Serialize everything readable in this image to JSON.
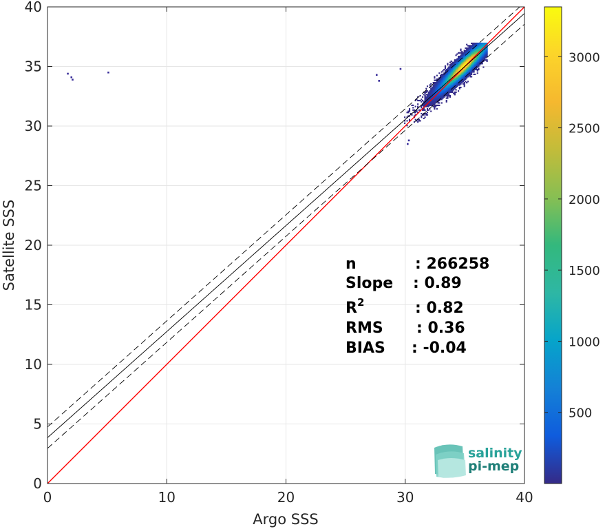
{
  "chart_data": {
    "type": "heatmap",
    "xlabel": "Argo SSS",
    "ylabel": "Satellite SSS",
    "xlim": [
      0,
      40
    ],
    "ylim": [
      0,
      40
    ],
    "xticks": [
      "0",
      "10",
      "20",
      "30",
      "40"
    ],
    "yticks": [
      "0",
      "5",
      "10",
      "15",
      "20",
      "25",
      "30",
      "35",
      "40"
    ],
    "grid": true,
    "colorbar": {
      "range": [
        0,
        3350
      ],
      "ticks": [
        "500",
        "1000",
        "1500",
        "2000",
        "2500",
        "3000"
      ],
      "tick_values": [
        500,
        1000,
        1500,
        2000,
        2500,
        3000
      ],
      "colormap": "parula"
    },
    "density_cluster": {
      "center": [
        34.9,
        35.0
      ],
      "x_range": [
        29.8,
        36.9
      ],
      "y_range": [
        29.5,
        37.1
      ],
      "peak_count": 3350
    },
    "outliers": [
      {
        "x": 1.7,
        "y": 34.4
      },
      {
        "x": 2.0,
        "y": 34.1
      },
      {
        "x": 2.1,
        "y": 33.9
      },
      {
        "x": 5.1,
        "y": 34.5
      },
      {
        "x": 27.6,
        "y": 34.3
      },
      {
        "x": 27.8,
        "y": 33.8
      },
      {
        "x": 29.6,
        "y": 34.8
      },
      {
        "x": 30.2,
        "y": 28.5
      },
      {
        "x": 30.3,
        "y": 28.8
      }
    ],
    "lines": [
      {
        "name": "identity",
        "slope": 1.0,
        "intercept": 0.0,
        "color": "#ff0000",
        "style": "solid"
      },
      {
        "name": "regression",
        "slope": 0.89,
        "intercept": 3.85,
        "color": "#000000",
        "style": "solid"
      },
      {
        "name": "regression-upper",
        "slope": 0.89,
        "intercept": 4.75,
        "color": "#000000",
        "style": "dashed"
      },
      {
        "name": "regression-lower",
        "slope": 0.89,
        "intercept": 2.95,
        "color": "#000000",
        "style": "dashed"
      }
    ]
  },
  "stats": {
    "n_label": "n",
    "n_value": ": 266258",
    "slope_label": "Slope",
    "slope_value": ": 0.89",
    "r2_label": "R",
    "r2_sup": "2",
    "r2_value": ": 0.82",
    "rms_label": "RMS",
    "rms_value": ": 0.36",
    "bias_label": "BIAS",
    "bias_value": ": -0.04"
  },
  "logo": {
    "line1": "salinity",
    "line2": "pi-mep",
    "color_top": "#2aa39a",
    "color_bottom": "#1f7f78"
  }
}
